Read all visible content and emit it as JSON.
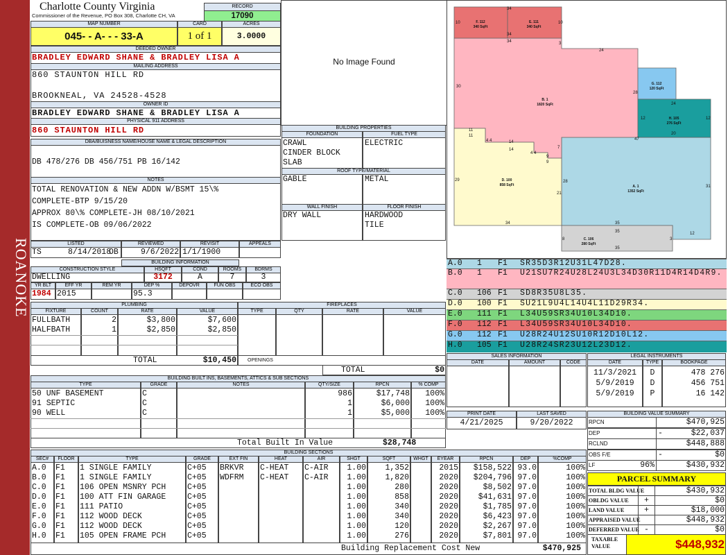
{
  "sidebar": "ROANOKE",
  "header": {
    "title": "Charlotte County Virginia",
    "subtitle": "Commissioner of the Revenue, PO Box 308, Charlotte CH, VA",
    "record_label": "RECORD",
    "record": "17090"
  },
  "map": {
    "labels": [
      "MAP NUMBER",
      "CARD",
      "ACRES"
    ],
    "map_number": "045- - A- - - 33-A",
    "card": "1 of 1",
    "acres": "3.0000"
  },
  "deeded_owner": {
    "label": "DEEDED OWNER",
    "value": "BRADLEY EDWARD SHANE & BRADLEY LISA A"
  },
  "mailing": {
    "label": "MAILING ADDRESS",
    "lines": [
      "860 STAUNTON HILL RD",
      "BROOKNEAL, VA 24528-4528"
    ]
  },
  "owner_id": {
    "label": "OWNER ID",
    "value": "BRADLEY EDWARD SHANE & BRADLEY LISA A"
  },
  "physical": {
    "label": "PHYSICAL 911 ADDRESS",
    "value": "860 STAUNTON HILL RD"
  },
  "legal_desc": {
    "label": "DBA/BUISNESS NAME/HOUSE NAME & LEGAL DESCRIPTION",
    "value": "DB 478/276 DB 456/751 PB 16/142"
  },
  "notes": {
    "label": "NOTES",
    "lines": [
      "TOTAL RENOVATION & NEW ADDN W/BSMT 15\\%",
      "COMPLETE-BTP 9/15/20",
      "APPROX 80\\% COMPLETE-JH 08/10/2021",
      "IS COMPLETE-OB 09/06/2022"
    ]
  },
  "review": {
    "labels": [
      "LISTED",
      "REVIEWED",
      "REVISIT",
      "APPEALS"
    ],
    "listed_by": "TS",
    "listed": "8/14/2018",
    "reviewed_by": "OB",
    "reviewed": "9/6/2022",
    "revisit": "1/1/1900"
  },
  "building_info": {
    "label": "BUILDING INFORMATION",
    "headers": [
      "CONSTRUCTION STYLE",
      "HSQFT",
      "COND",
      "ROOMS",
      "BDRMS"
    ],
    "values": [
      "DWELLING",
      "3172",
      "A",
      "7",
      "3"
    ],
    "headers2": [
      "YR BLT",
      "EFF YR",
      "REM YR",
      "DEP %",
      "DEPOVR",
      "FUN OBS",
      "ECO OBS"
    ],
    "yr_blt": "1984",
    "eff_yr": "2015",
    "dep": "95.3"
  },
  "image": "No Image Found",
  "building_props": {
    "label": "BUILDING PROPERTIES",
    "foundation_label": "FOUNDATION",
    "fuel_label": "FUEL TYPE",
    "foundation": [
      "CRAWL",
      "CINDER BLOCK",
      "SLAB"
    ],
    "fuel": [
      "ELECTRIC"
    ],
    "roof_label": "ROOF TYPE/MATERIAL",
    "roof_type": "GABLE",
    "roof_material": "METAL",
    "wall_label": "WALL FINISH",
    "floor_label": "FLOOR FINISH",
    "wall": [
      "DRY WALL"
    ],
    "floor": [
      "HARDWOOD",
      "TILE"
    ]
  },
  "plumbing": {
    "label": "PLUMBING",
    "headers": [
      "FIXTURE",
      "COUNT",
      "RATE",
      "VALUE"
    ],
    "rows": [
      [
        "FULLBATH",
        "2",
        "$3,800",
        "$7,600"
      ],
      [
        "HALFBATH",
        "1",
        "$2,850",
        "$2,850"
      ]
    ],
    "total_label": "TOTAL",
    "total": "$10,450"
  },
  "fireplaces": {
    "label": "FIREPLACES",
    "headers": [
      "TYPE",
      "QTY",
      "RATE",
      "VALUE"
    ],
    "openings": "OPENINGS",
    "total_label": "TOTAL",
    "total": "$0"
  },
  "built_ins": {
    "label": "BUILDING BUILT INS, BASEMENTS, ATTICS & SUB SECTIONS",
    "headers": [
      "TYPE",
      "GRADE",
      "NOTES",
      "QTY/SIZE",
      "RPCN",
      "% COMP"
    ],
    "rows": [
      [
        "50 UNF BASEMENT",
        "C",
        "986",
        "$17,748",
        "100%"
      ],
      [
        "91 SEPTIC",
        "C",
        "1",
        "$6,000",
        "100%"
      ],
      [
        "90 WELL",
        "C",
        "1",
        "$5,000",
        "100%"
      ]
    ],
    "total_label": "Total Built In Value",
    "total": "$28,748"
  },
  "sections": {
    "label": "BUILDING SECTIONS",
    "headers": [
      "SEC#",
      "FLOOR",
      "TYPE",
      "GRADE",
      "EXT FIN",
      "HEAT",
      "AIR",
      "SHGT",
      "SQFT",
      "WHGT",
      "EYEAR",
      "RPCN",
      "DEP",
      "%COMP"
    ],
    "rows": [
      {
        "sec": "A.0",
        "floor": "F1",
        "type": "1 SINGLE FAMILY",
        "grade": "C+05",
        "ext_fin": "BRKVR",
        "heat": "C-HEAT",
        "air": "C-AIR",
        "shgt": "1.00",
        "sqft": "1,352",
        "eyear": "2015",
        "rpcn": "$158,522",
        "dep": "93.0",
        "comp": "100%"
      },
      {
        "sec": "B.0",
        "floor": "F1",
        "type": "1 SINGLE FAMILY",
        "grade": "C+05",
        "ext_fin": "WDFRM",
        "heat": "C-HEAT",
        "air": "C-AIR",
        "shgt": "1.00",
        "sqft": "1,820",
        "eyear": "2020",
        "rpcn": "$204,796",
        "dep": "97.0",
        "comp": "100%"
      },
      {
        "sec": "C.0",
        "floor": "F1",
        "type": "106 OPEN MSNRY PCH",
        "grade": "C+05",
        "shgt": "1.00",
        "sqft": "280",
        "eyear": "2020",
        "rpcn": "$8,502",
        "dep": "97.0",
        "comp": "100%"
      },
      {
        "sec": "D.0",
        "floor": "F1",
        "type": "100 ATT FIN GARAGE",
        "grade": "C+05",
        "shgt": "1.00",
        "sqft": "858",
        "eyear": "2020",
        "rpcn": "$41,631",
        "dep": "97.0",
        "comp": "100%"
      },
      {
        "sec": "E.0",
        "floor": "F1",
        "type": "111 PATIO",
        "grade": "C+05",
        "shgt": "1.00",
        "sqft": "340",
        "eyear": "2020",
        "rpcn": "$1,785",
        "dep": "97.0",
        "comp": "100%"
      },
      {
        "sec": "F.0",
        "floor": "F1",
        "type": "112 WOOD DECK",
        "grade": "C+05",
        "shgt": "1.00",
        "sqft": "340",
        "eyear": "2020",
        "rpcn": "$6,423",
        "dep": "97.0",
        "comp": "100%"
      },
      {
        "sec": "G.0",
        "floor": "F1",
        "type": "112 WOOD DECK",
        "grade": "C+05",
        "shgt": "1.00",
        "sqft": "120",
        "eyear": "2020",
        "rpcn": "$2,267",
        "dep": "97.0",
        "comp": "100%"
      },
      {
        "sec": "H.0",
        "floor": "F1",
        "type": "105 OPEN FRAME PCH",
        "grade": "C+05",
        "shgt": "1.00",
        "sqft": "276",
        "eyear": "2020",
        "rpcn": "$7,801",
        "dep": "97.0",
        "comp": "100%"
      }
    ],
    "total_label": "Building Replacement Cost New",
    "total": "$470,925"
  },
  "sketch": {
    "areas": [
      {
        "code": "A. 1",
        "size": "1352 SqFt"
      },
      {
        "code": "B. 1",
        "size": "1820 SqFt"
      },
      {
        "code": "C. 106",
        "size": "280 SqFt"
      },
      {
        "code": "D. 100",
        "size": "858 SqFt"
      },
      {
        "code": "E. 111",
        "size": "340 SqFt"
      },
      {
        "code": "F. 112",
        "size": "340 SqFt"
      },
      {
        "code": "G. 112",
        "size": "120 SqFt"
      },
      {
        "code": "H. 105",
        "size": "276 SqFt"
      }
    ],
    "dims": [
      "34",
      "10",
      "10",
      "34",
      "34",
      "3",
      "24",
      "30",
      "28",
      "12",
      "12",
      "24",
      "20",
      "47",
      "11",
      "11",
      "4",
      "4",
      "14",
      "14",
      "4",
      "4",
      "7",
      "9",
      "9",
      "29",
      "28",
      "21",
      "31",
      "34",
      "35",
      "35",
      "12",
      "8",
      "3",
      "35"
    ]
  },
  "sketch_legend": [
    {
      "code": "A.0",
      "num": "1",
      "floor": "F1",
      "path": "SR35D3R12U31L47D28.",
      "color": "#add8e6"
    },
    {
      "code": "B.0",
      "num": "1",
      "floor": "F1",
      "path": "U21SU7R24U28L24U3L34D30R11D4R14D4R9.",
      "color": "#ffb6c1"
    },
    {
      "code": "C.0",
      "num": "106",
      "floor": "F1",
      "path": "SD8R35U8L35.",
      "color": "#d3d3d3"
    },
    {
      "code": "D.0",
      "num": "100",
      "floor": "F1",
      "path": "SU21L9U4L14U4L11D29R34.",
      "color": "#fffacd"
    },
    {
      "code": "E.0",
      "num": "111",
      "floor": "F1",
      "path": "L34U59SR34U10L34D10.",
      "color": "#7ed67e"
    },
    {
      "code": "F.0",
      "num": "112",
      "floor": "F1",
      "path": "L34U59SR34U10L34D10.",
      "color": "#e87272"
    },
    {
      "code": "G.0",
      "num": "112",
      "floor": "F1",
      "path": "U28R24U12SU10R12D10L12.",
      "color": "#87c8f0"
    },
    {
      "code": "H.0",
      "num": "105",
      "floor": "F1",
      "path": "U28R24SR23U12L23D12.",
      "color": "#1a9e9e"
    }
  ],
  "sales": {
    "label": "SALES INFORMATION",
    "headers": [
      "DATE",
      "AMOUNT",
      "CODE"
    ]
  },
  "legal_instruments": {
    "label": "LEGAL INSTRUMENTS",
    "headers": [
      "DATE",
      "TYPE",
      "BOOKPAGE"
    ],
    "rows": [
      [
        "11/3/2021",
        "D",
        "478 276"
      ],
      [
        "5/9/2019",
        "D",
        "456 751"
      ],
      [
        "5/9/2019",
        "P",
        "16 142"
      ]
    ]
  },
  "dates": {
    "labels": [
      "PRINT DATE",
      "LAST SAVED"
    ],
    "values": [
      "4/21/2025",
      "9/20/2022"
    ]
  },
  "value_summary": {
    "label": "BUILDING VALUE SUMMARY",
    "rows": [
      {
        "label": "RPCN",
        "value": "$470,925"
      },
      {
        "label": "DEP",
        "sign": "-",
        "value": "$22,037"
      },
      {
        "label": "RCLND",
        "value": "$448,888"
      },
      {
        "label": "OBS F/E",
        "sign": "-",
        "value": "$0"
      },
      {
        "label": "LF",
        "pct": "96%",
        "value": "$430,932"
      }
    ]
  },
  "parcel_summary": {
    "title": "PARCEL SUMMARY",
    "rows": [
      {
        "label": "TOTAL BLDG VALUE",
        "value": "$430,932"
      },
      {
        "label": "OBLDG VALUE",
        "sign": "+",
        "value": "$0"
      },
      {
        "label": "LAND VALUE",
        "sign": "+",
        "value": "$18,000"
      },
      {
        "label": "APPRAISED VALUE",
        "value": "$448,932"
      },
      {
        "label": "DEFERRED VALUE",
        "sign": "-",
        "value": "$0"
      }
    ],
    "taxable_label": "TAXABLE VALUE",
    "taxable": "$448,932"
  }
}
